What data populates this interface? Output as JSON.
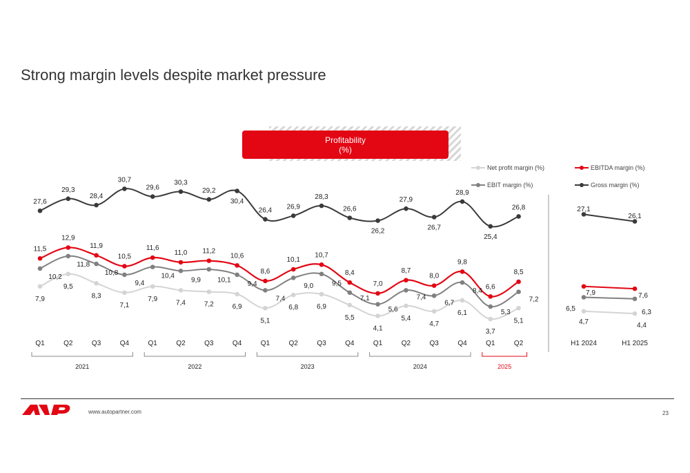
{
  "page": {
    "title": "Strong margin levels despite market pressure",
    "profitability_label_line1": "Profitability",
    "profitability_label_line2": "(%)",
    "url": "www.autopartner.com",
    "page_number": "23"
  },
  "colors": {
    "accent": "#e30613",
    "gross": "#3a3a3a",
    "ebit": "#808080",
    "net": "#d4d4d4"
  },
  "chart_data": [
    {
      "type": "line",
      "title": "",
      "categories": [
        "Q1",
        "Q2",
        "Q3",
        "Q4",
        "Q1",
        "Q2",
        "Q3",
        "Q4",
        "Q1",
        "Q2",
        "Q3",
        "Q4",
        "Q1",
        "Q2",
        "Q3",
        "Q4",
        "Q1",
        "Q2"
      ],
      "year_groups": [
        {
          "label": "2021",
          "highlight": false
        },
        {
          "label": "2022",
          "highlight": false
        },
        {
          "label": "2023",
          "highlight": false
        },
        {
          "label": "2024",
          "highlight": false
        },
        {
          "label": "2025",
          "highlight": true
        }
      ],
      "series": [
        {
          "name": "Gross margin (%)",
          "key": "gross",
          "values": [
            "27,6",
            "29,3",
            "28,4",
            "30,7",
            "29,6",
            "30,3",
            "29,2",
            "30,4",
            "26,4",
            "26,9",
            "28,3",
            "26,6",
            "26,2",
            "27,9",
            "26,7",
            "28,9",
            "25,4",
            "26,8"
          ]
        },
        {
          "name": "EBITDA margin (%)",
          "key": "ebitda",
          "values": [
            "11,5",
            "12,9",
            "11,9",
            "10,5",
            "11,6",
            "11,0",
            "11,2",
            "10,6",
            "8,6",
            "10,1",
            "10,7",
            "8,4",
            "7,0",
            "8,7",
            "8,0",
            "9,8",
            "6,6",
            "8,5"
          ]
        },
        {
          "name": "EBIT margin (%)",
          "key": "ebit",
          "values": [
            "10,2",
            "11,8",
            "10,8",
            "9,4",
            "10,4",
            "9,9",
            "10,1",
            "9,4",
            "7,4",
            "9,0",
            "9,5",
            "7,1",
            "5,6",
            "7,4",
            "6,7",
            "8,4",
            "5,3",
            "7,2"
          ]
        },
        {
          "name": "Net profit margin (%)",
          "key": "net",
          "values": [
            "7,9",
            "9,5",
            "8,3",
            "7,1",
            "7,9",
            "7,4",
            "7,2",
            "6,9",
            "5,1",
            "6,8",
            "6,9",
            "5,5",
            "4,1",
            "5,4",
            "4,7",
            "6,1",
            "3,7",
            "5,1"
          ]
        }
      ],
      "legend": [
        "Net profit margin (%)",
        "EBITDA margin (%)",
        "EBIT margin (%)",
        "Gross margin (%)"
      ],
      "legend_position": "top-right"
    },
    {
      "type": "line",
      "title": "",
      "categories": [
        "H1 2024",
        "H1 2025"
      ],
      "series": [
        {
          "name": "Gross margin (%)",
          "key": "gross",
          "values": [
            "27,1",
            "26,1"
          ]
        },
        {
          "name": "EBITDA margin (%)",
          "key": "ebitda",
          "values": [
            "7,9",
            "7,6"
          ]
        },
        {
          "name": "EBIT margin (%)",
          "key": "ebit",
          "values": [
            "6,5",
            "6,3"
          ]
        },
        {
          "name": "Net profit margin (%)",
          "key": "net",
          "values": [
            "4,7",
            "4,4"
          ]
        }
      ]
    }
  ]
}
